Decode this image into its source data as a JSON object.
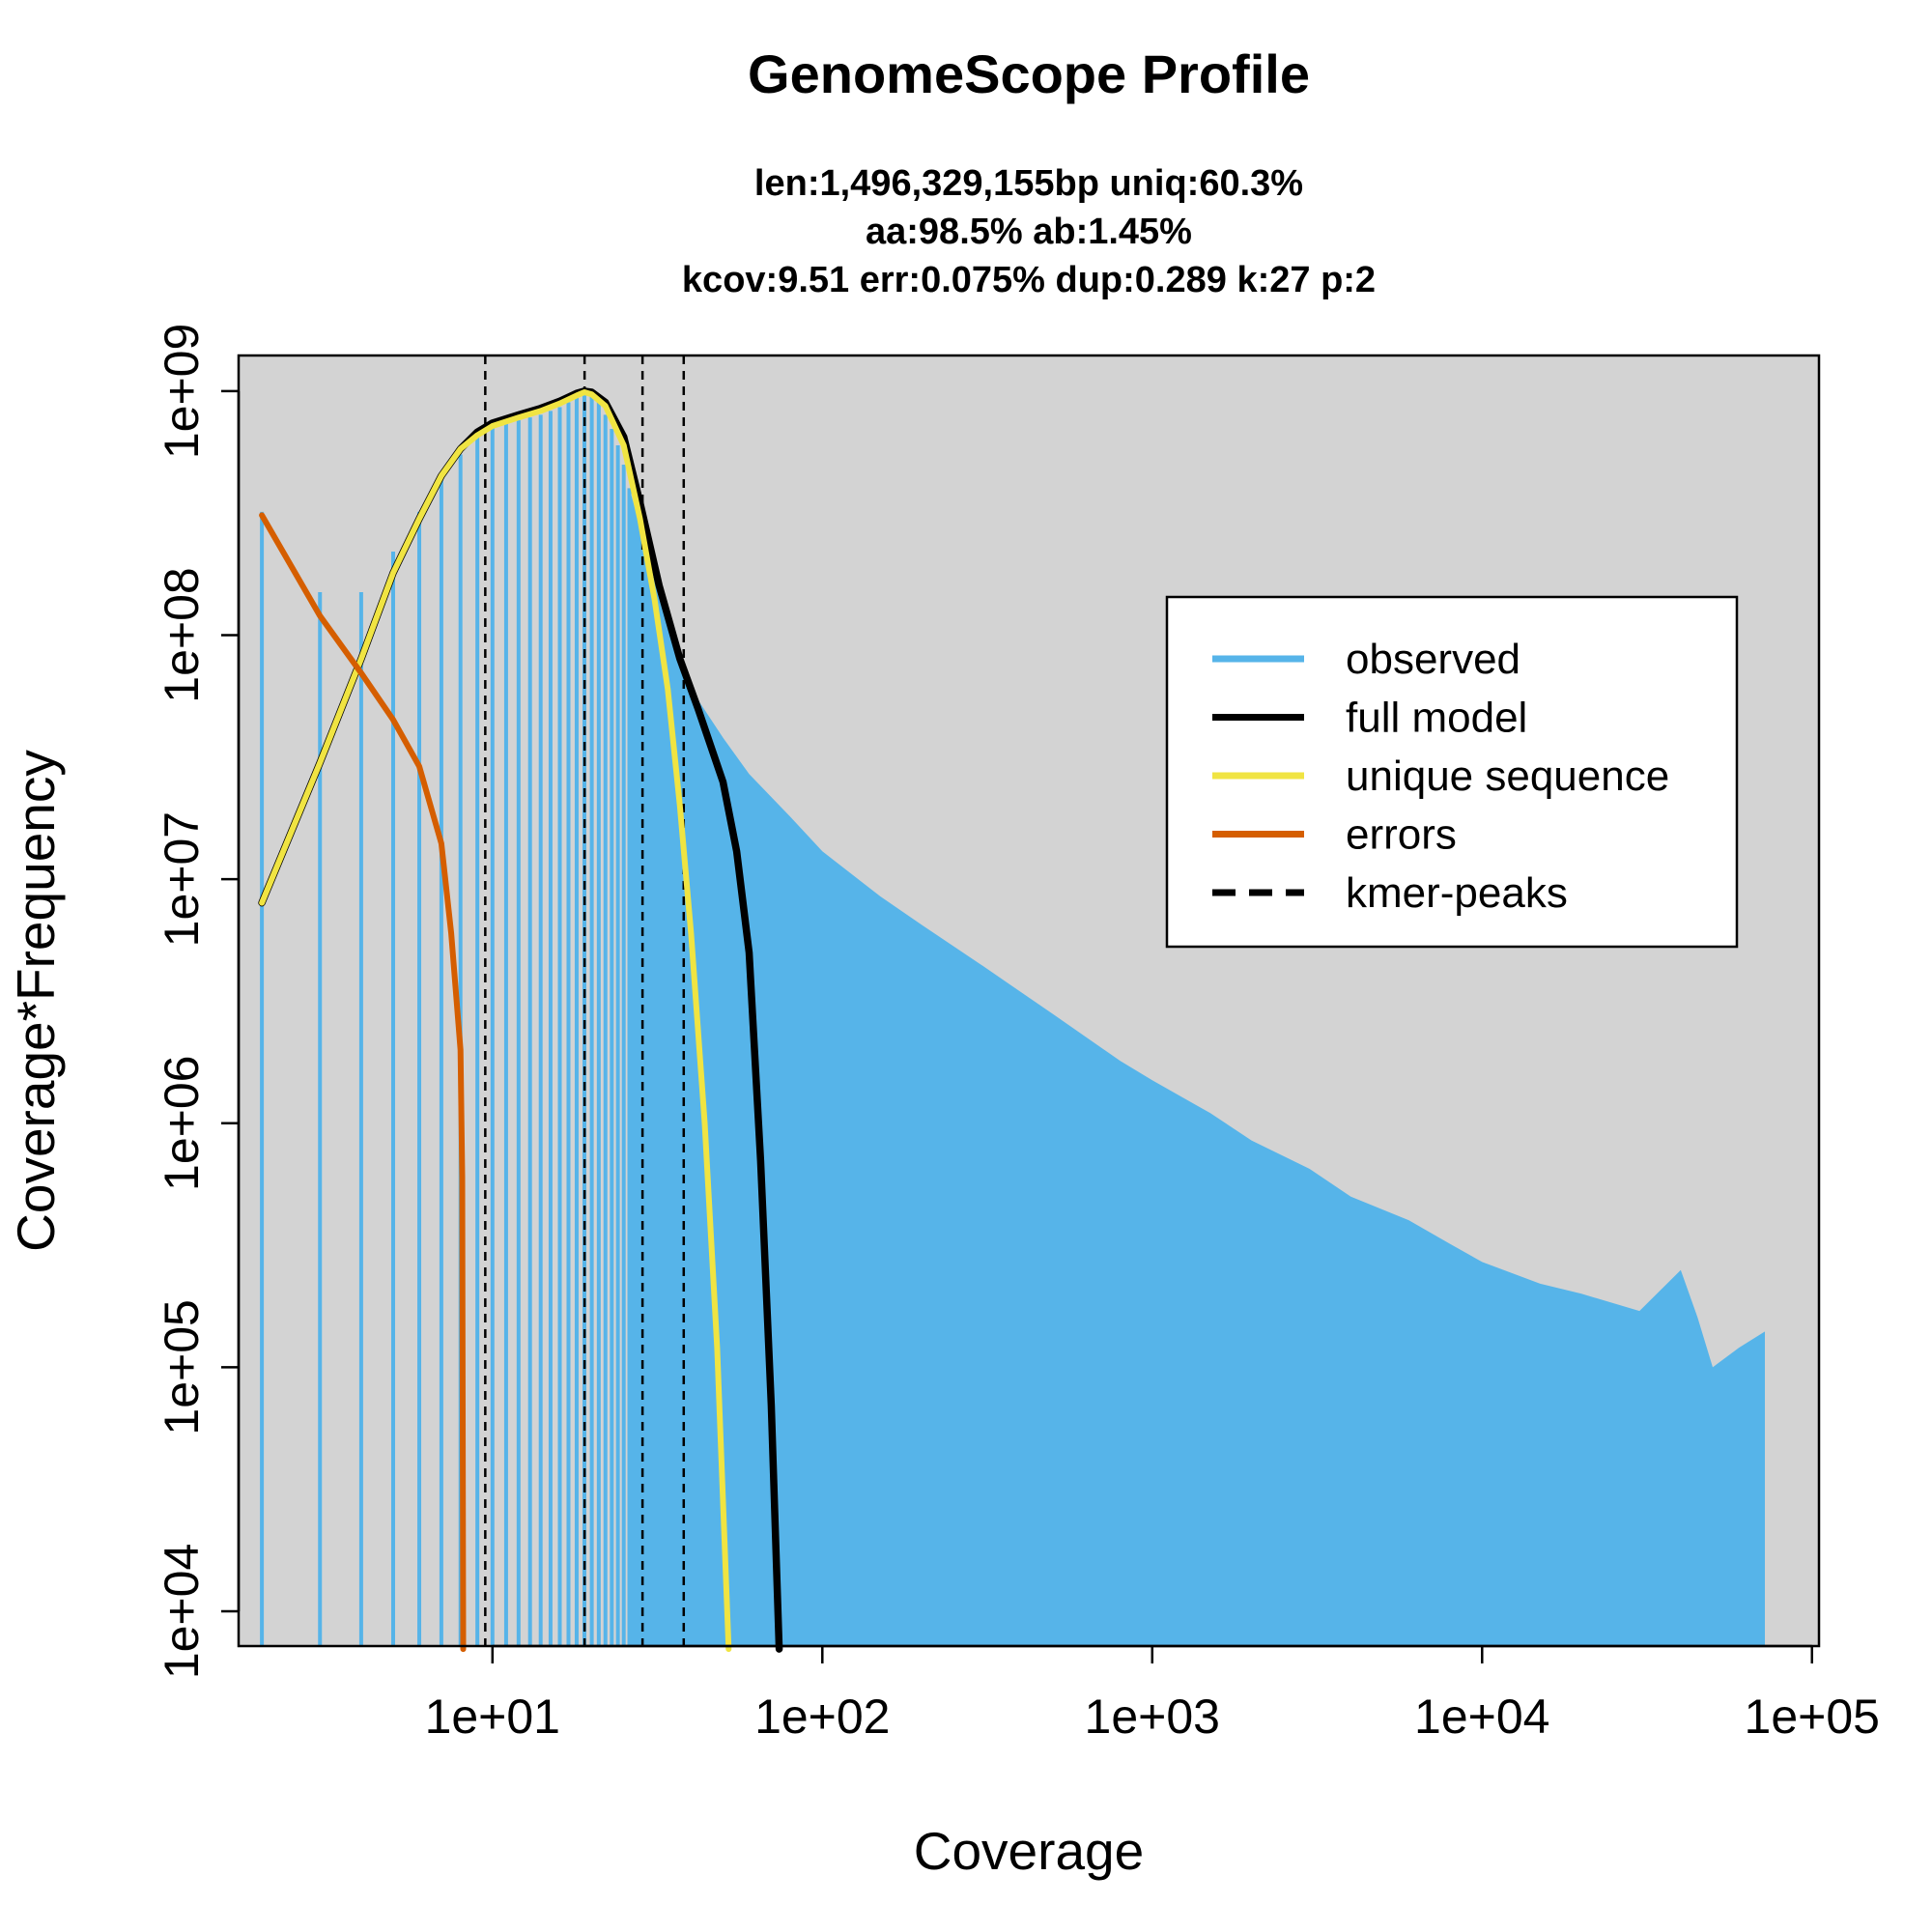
{
  "chart_data": {
    "type": "line",
    "title": "GenomeScope Profile",
    "subtitle_lines": [
      "len:1,496,329,155bp uniq:60.3%",
      "aa:98.5% ab:1.45%",
      "kcov:9.51 err:0.075%  dup:0.289  k:27 p:2"
    ],
    "xlabel": "Coverage",
    "ylabel": "Coverage*Frequency",
    "x_scale": "log",
    "y_scale": "log",
    "xlim": [
      1.7,
      105000
    ],
    "ylim": [
      7200,
      1400000000
    ],
    "x_ticks": [
      10,
      100,
      1000,
      10000,
      100000
    ],
    "x_tick_labels": [
      "1e+01",
      "1e+02",
      "1e+03",
      "1e+04",
      "1e+05"
    ],
    "y_ticks": [
      10000,
      100000,
      1000000,
      10000000,
      100000000,
      1000000000
    ],
    "y_tick_labels": [
      "1e+04",
      "1e+05",
      "1e+06",
      "1e+07",
      "1e+08",
      "1e+09"
    ],
    "grid": false,
    "plot_background": "#d3d3d3",
    "legend_position": "right",
    "legend": [
      {
        "label": "observed",
        "color": "#56b4e9",
        "style": "solid"
      },
      {
        "label": "full model",
        "color": "#000000",
        "style": "solid"
      },
      {
        "label": "unique sequence",
        "color": "#f0e442",
        "style": "solid"
      },
      {
        "label": "errors",
        "color": "#d55e00",
        "style": "solid"
      },
      {
        "label": "kmer-peaks",
        "color": "#000000",
        "style": "dashed"
      }
    ],
    "kmer_peaks": [
      9.51,
      19.02,
      28.5,
      38.0
    ],
    "observed": {
      "color": "#56b4e9",
      "discrete_bars": [
        [
          2,
          320000000
        ],
        [
          3,
          150000000
        ],
        [
          4,
          150000000
        ],
        [
          5,
          220000000
        ],
        [
          6,
          320000000
        ],
        [
          7,
          440000000
        ],
        [
          8,
          550000000
        ],
        [
          9,
          650000000
        ],
        [
          10,
          720000000
        ],
        [
          11,
          740000000
        ],
        [
          12,
          760000000
        ],
        [
          13,
          780000000
        ],
        [
          14,
          800000000
        ],
        [
          15,
          830000000
        ],
        [
          16,
          860000000
        ],
        [
          17,
          900000000
        ],
        [
          18,
          940000000
        ],
        [
          19,
          970000000
        ],
        [
          20,
          960000000
        ],
        [
          21,
          900000000
        ],
        [
          22,
          800000000
        ],
        [
          23,
          700000000
        ],
        [
          24,
          600000000
        ],
        [
          25,
          500000000
        ],
        [
          26,
          400000000
        ]
      ],
      "envelope": [
        [
          26,
          400000000
        ],
        [
          30,
          200000000
        ],
        [
          35,
          100000000
        ],
        [
          40,
          60000000
        ],
        [
          50,
          38000000
        ],
        [
          60,
          27000000
        ],
        [
          80,
          18000000
        ],
        [
          100,
          13000000
        ],
        [
          150,
          8500000
        ],
        [
          200,
          6500000
        ],
        [
          300,
          4500000
        ],
        [
          500,
          2800000
        ],
        [
          800,
          1800000
        ],
        [
          1000,
          1500000
        ],
        [
          1500,
          1100000
        ],
        [
          2000,
          850000
        ],
        [
          3000,
          650000
        ],
        [
          4000,
          500000
        ],
        [
          6000,
          400000
        ],
        [
          8000,
          320000
        ],
        [
          10000,
          270000
        ],
        [
          15000,
          220000
        ],
        [
          20000,
          200000
        ],
        [
          30000,
          170000
        ],
        [
          40000,
          250000
        ],
        [
          45000,
          160000
        ],
        [
          50000,
          100000
        ],
        [
          60000,
          120000
        ],
        [
          72000,
          140000
        ]
      ]
    },
    "series": [
      {
        "name": "full model",
        "color": "#000000",
        "points": [
          [
            2,
            8000000
          ],
          [
            3,
            30000000
          ],
          [
            4,
            80000000
          ],
          [
            5,
            180000000
          ],
          [
            6,
            300000000
          ],
          [
            7,
            450000000
          ],
          [
            8,
            580000000
          ],
          [
            9,
            680000000
          ],
          [
            10,
            740000000
          ],
          [
            12,
            800000000
          ],
          [
            14,
            850000000
          ],
          [
            16,
            910000000
          ],
          [
            18,
            980000000
          ],
          [
            19,
            1000000000
          ],
          [
            20,
            990000000
          ],
          [
            22,
            900000000
          ],
          [
            25,
            650000000
          ],
          [
            28,
            350000000
          ],
          [
            32,
            160000000
          ],
          [
            37,
            80000000
          ],
          [
            42,
            50000000
          ],
          [
            50,
            25000000
          ],
          [
            55,
            13000000
          ],
          [
            60,
            5000000
          ],
          [
            65,
            700000
          ],
          [
            70,
            70000
          ],
          [
            74,
            7000
          ]
        ]
      },
      {
        "name": "unique sequence",
        "color": "#f0e442",
        "points": [
          [
            2,
            8000000
          ],
          [
            3,
            30000000
          ],
          [
            4,
            80000000
          ],
          [
            5,
            180000000
          ],
          [
            6,
            300000000
          ],
          [
            7,
            450000000
          ],
          [
            8,
            580000000
          ],
          [
            9,
            660000000
          ],
          [
            10,
            720000000
          ],
          [
            12,
            780000000
          ],
          [
            14,
            830000000
          ],
          [
            16,
            890000000
          ],
          [
            18,
            960000000
          ],
          [
            19,
            990000000
          ],
          [
            20,
            970000000
          ],
          [
            22,
            870000000
          ],
          [
            25,
            600000000
          ],
          [
            28,
            300000000
          ],
          [
            31,
            140000000
          ],
          [
            34,
            60000000
          ],
          [
            37,
            20000000
          ],
          [
            40,
            6000000
          ],
          [
            44,
            1000000
          ],
          [
            48,
            120000
          ],
          [
            52,
            7000
          ]
        ]
      },
      {
        "name": "errors",
        "color": "#d55e00",
        "points": [
          [
            2,
            310000000
          ],
          [
            3,
            120000000
          ],
          [
            4,
            70000000
          ],
          [
            5,
            45000000
          ],
          [
            6,
            29000000
          ],
          [
            7,
            14000000
          ],
          [
            7.5,
            6000000
          ],
          [
            8,
            2000000
          ],
          [
            8.1,
            600000
          ],
          [
            8.15,
            7000
          ]
        ]
      }
    ]
  }
}
